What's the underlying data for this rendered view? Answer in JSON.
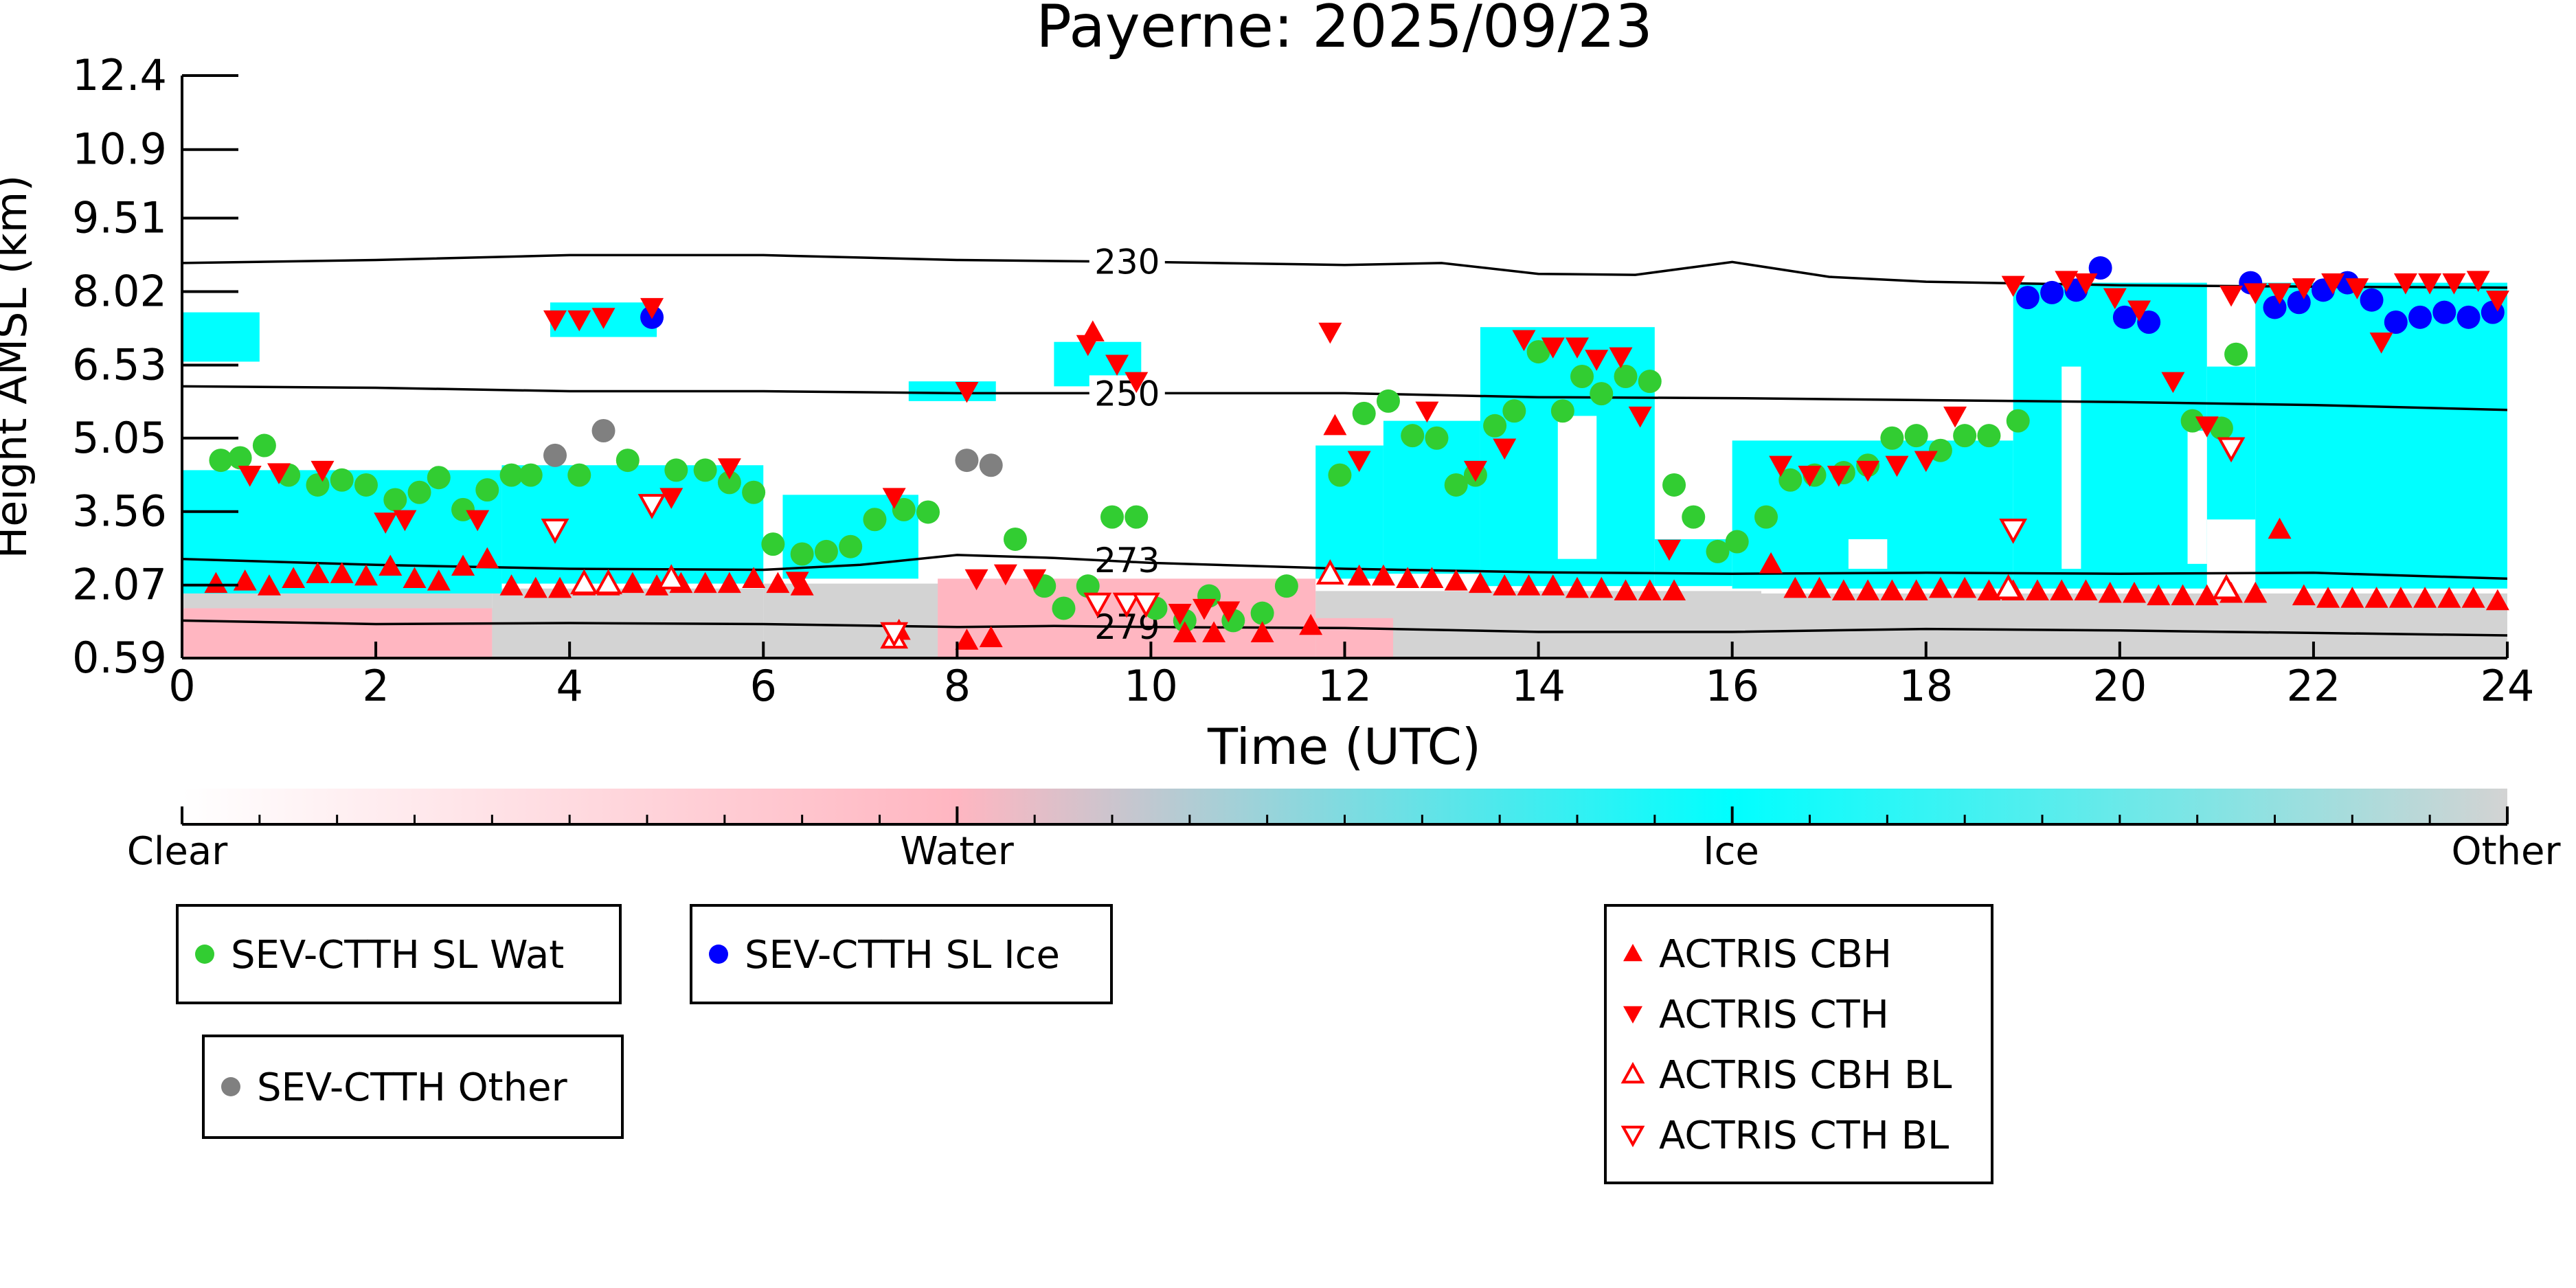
{
  "chart_data": {
    "type": "scatter",
    "title": "Payerne: 2025/09/23",
    "xlabel": "Time (UTC)",
    "ylabel": "Height AMSL (km)",
    "xlim": [
      0,
      24
    ],
    "ylim": [
      0.59,
      12.4
    ],
    "x_ticks": [
      0,
      2,
      4,
      6,
      8,
      10,
      12,
      14,
      16,
      18,
      20,
      22,
      24
    ],
    "y_ticks": [
      "0.59",
      "2.07",
      "3.56",
      "5.05",
      "6.53",
      "8.02",
      "9.51",
      "10.9",
      "12.4"
    ],
    "y_tick_values": [
      0.59,
      2.07,
      3.56,
      5.05,
      6.53,
      8.02,
      9.51,
      10.9,
      12.4
    ],
    "colors": {
      "clear": "#ffffff",
      "water": "#ffb6c1",
      "ice": "#00ffff",
      "other": "#d3d3d3",
      "wat": "#32cd32",
      "ice_marker": "#0000ff",
      "other_marker": "#808080",
      "actris": "#ff0000"
    },
    "colorbar": {
      "labels": [
        "Clear",
        "Water",
        "Ice",
        "Other"
      ]
    },
    "isotherms": [
      {
        "label": "230",
        "label_x": 9.4,
        "points": [
          [
            0,
            8.6
          ],
          [
            2,
            8.66
          ],
          [
            4,
            8.76
          ],
          [
            6,
            8.76
          ],
          [
            8,
            8.66
          ],
          [
            10,
            8.62
          ],
          [
            12,
            8.56
          ],
          [
            13,
            8.6
          ],
          [
            14,
            8.38
          ],
          [
            15,
            8.36
          ],
          [
            16,
            8.62
          ],
          [
            17,
            8.32
          ],
          [
            18,
            8.22
          ],
          [
            20,
            8.15
          ],
          [
            22,
            8.12
          ],
          [
            24,
            8.1
          ]
        ]
      },
      {
        "label": "250",
        "label_x": 9.4,
        "points": [
          [
            0,
            6.1
          ],
          [
            2,
            6.07
          ],
          [
            4,
            6.0
          ],
          [
            6,
            6.0
          ],
          [
            8,
            5.96
          ],
          [
            10,
            5.96
          ],
          [
            12,
            5.96
          ],
          [
            14,
            5.88
          ],
          [
            16,
            5.86
          ],
          [
            18,
            5.82
          ],
          [
            20,
            5.78
          ],
          [
            22,
            5.72
          ],
          [
            24,
            5.62
          ]
        ]
      },
      {
        "label": "273",
        "label_x": 9.4,
        "points": [
          [
            0,
            2.6
          ],
          [
            2,
            2.48
          ],
          [
            4,
            2.4
          ],
          [
            6,
            2.38
          ],
          [
            7,
            2.48
          ],
          [
            8,
            2.68
          ],
          [
            9,
            2.62
          ],
          [
            10,
            2.52
          ],
          [
            12,
            2.4
          ],
          [
            14,
            2.33
          ],
          [
            16,
            2.3
          ],
          [
            18,
            2.32
          ],
          [
            20,
            2.3
          ],
          [
            22,
            2.32
          ],
          [
            24,
            2.2
          ]
        ]
      },
      {
        "label": "279",
        "label_x": 9.4,
        "points": [
          [
            0,
            1.35
          ],
          [
            2,
            1.28
          ],
          [
            4,
            1.3
          ],
          [
            6,
            1.28
          ],
          [
            8,
            1.22
          ],
          [
            9,
            1.24
          ],
          [
            10,
            1.22
          ],
          [
            12,
            1.2
          ],
          [
            14,
            1.12
          ],
          [
            16,
            1.12
          ],
          [
            18,
            1.18
          ],
          [
            20,
            1.15
          ],
          [
            22,
            1.1
          ],
          [
            24,
            1.05
          ]
        ]
      }
    ],
    "series": [
      {
        "name": "SEV-CTTH SL Wat",
        "marker": "circle",
        "color": "#32cd32",
        "x": [
          0.4,
          0.6,
          0.85,
          1.1,
          1.4,
          1.65,
          1.9,
          2.2,
          2.45,
          2.65,
          2.9,
          3.15,
          3.4,
          3.6,
          4.1,
          4.6,
          5.1,
          5.4,
          5.65,
          5.9,
          6.1,
          6.4,
          6.65,
          6.9,
          7.15,
          7.45,
          7.7,
          8.6,
          8.9,
          9.1,
          9.35,
          9.6,
          9.85,
          10.05,
          10.35,
          10.6,
          10.85,
          11.15,
          11.4,
          11.95,
          12.2,
          12.45,
          12.7,
          12.95,
          13.15,
          13.35,
          13.55,
          13.75,
          14.0,
          14.25,
          14.45,
          14.65,
          14.9,
          15.15,
          15.4,
          15.6,
          15.85,
          16.05,
          16.35,
          16.6,
          16.85,
          17.15,
          17.4,
          17.65,
          17.9,
          18.15,
          18.4,
          18.65,
          18.95,
          20.75,
          21.05,
          21.2
        ],
        "y": [
          4.6,
          4.65,
          4.9,
          4.3,
          4.1,
          4.2,
          4.1,
          3.8,
          3.95,
          4.25,
          3.6,
          4.0,
          4.3,
          4.3,
          4.3,
          4.6,
          4.4,
          4.4,
          4.15,
          3.95,
          2.9,
          2.7,
          2.75,
          2.85,
          3.4,
          3.6,
          3.55,
          3.0,
          2.05,
          1.6,
          2.05,
          3.45,
          3.45,
          1.6,
          1.35,
          1.85,
          1.35,
          1.5,
          2.05,
          4.3,
          5.55,
          5.8,
          5.1,
          5.05,
          4.1,
          4.3,
          5.3,
          5.6,
          6.8,
          5.6,
          6.3,
          5.95,
          6.3,
          6.2,
          4.1,
          3.45,
          2.75,
          2.95,
          3.45,
          4.2,
          4.3,
          4.35,
          4.5,
          5.05,
          5.1,
          4.8,
          5.1,
          5.1,
          5.4,
          5.4,
          5.25,
          6.75
        ]
      },
      {
        "name": "SEV-CTTH SL Ice",
        "marker": "circle",
        "color": "#0000ff",
        "x": [
          4.85,
          19.05,
          19.3,
          19.55,
          19.8,
          20.05,
          20.3,
          21.35,
          21.6,
          21.85,
          22.1,
          22.35,
          22.6,
          22.85,
          23.1,
          23.35,
          23.6,
          23.85
        ],
        "y": [
          7.5,
          7.9,
          8.0,
          8.05,
          8.5,
          7.5,
          7.4,
          8.2,
          7.7,
          7.8,
          8.05,
          8.2,
          7.85,
          7.4,
          7.5,
          7.6,
          7.5,
          7.6
        ]
      },
      {
        "name": "SEV-CTTH Other",
        "marker": "circle",
        "color": "#808080",
        "x": [
          3.85,
          4.35,
          8.1,
          8.35
        ],
        "y": [
          4.7,
          5.2,
          4.6,
          4.5
        ]
      },
      {
        "name": "ACTRIS CBH",
        "marker": "triangle-up",
        "color": "#ff0000",
        "x": [
          0.35,
          0.65,
          0.9,
          1.15,
          1.4,
          1.65,
          1.9,
          2.15,
          2.4,
          2.65,
          2.9,
          3.15,
          3.4,
          3.65,
          3.9,
          4.15,
          4.4,
          4.65,
          4.9,
          5.15,
          5.4,
          5.65,
          5.9,
          6.15,
          6.4,
          7.4,
          8.1,
          8.35,
          9.4,
          10.35,
          10.65,
          11.15,
          11.65,
          11.9,
          12.15,
          12.4,
          12.65,
          12.9,
          13.15,
          13.4,
          13.65,
          13.9,
          14.15,
          14.4,
          14.65,
          14.9,
          15.15,
          15.4,
          16.4,
          16.65,
          16.9,
          17.15,
          17.4,
          17.65,
          17.9,
          18.15,
          18.4,
          18.65,
          18.9,
          19.15,
          19.4,
          19.65,
          19.9,
          20.15,
          20.4,
          20.65,
          20.9,
          21.15,
          21.4,
          21.65,
          21.9,
          22.15,
          22.4,
          22.65,
          22.9,
          23.15,
          23.4,
          23.65,
          23.9
        ],
        "y": [
          2.1,
          2.15,
          2.05,
          2.2,
          2.3,
          2.3,
          2.25,
          2.45,
          2.2,
          2.15,
          2.45,
          2.6,
          2.05,
          2.0,
          2.0,
          2.05,
          2.05,
          2.1,
          2.05,
          2.1,
          2.1,
          2.1,
          2.2,
          2.1,
          2.05,
          1.15,
          0.95,
          1.0,
          7.2,
          1.1,
          1.1,
          1.1,
          1.25,
          5.3,
          2.25,
          2.25,
          2.2,
          2.2,
          2.15,
          2.1,
          2.05,
          2.05,
          2.05,
          2.0,
          2.0,
          1.95,
          1.95,
          1.95,
          2.5,
          2.0,
          2.0,
          1.95,
          1.95,
          1.95,
          1.95,
          2.0,
          2.0,
          1.95,
          1.95,
          1.95,
          1.95,
          1.95,
          1.9,
          1.9,
          1.85,
          1.85,
          1.85,
          1.9,
          1.9,
          3.2,
          1.85,
          1.8,
          1.8,
          1.8,
          1.8,
          1.8,
          1.8,
          1.8,
          1.75
        ]
      },
      {
        "name": "ACTRIS CTH",
        "marker": "triangle-down",
        "color": "#ff0000",
        "x": [
          0.7,
          1.0,
          1.45,
          2.1,
          2.3,
          3.05,
          3.85,
          4.1,
          4.35,
          4.85,
          5.05,
          5.65,
          6.35,
          7.35,
          8.1,
          8.2,
          8.5,
          8.8,
          9.35,
          9.65,
          9.85,
          10.3,
          10.55,
          10.8,
          11.85,
          12.15,
          12.85,
          13.35,
          13.65,
          13.85,
          14.15,
          14.4,
          14.6,
          14.85,
          15.05,
          15.35,
          16.5,
          16.8,
          17.1,
          17.4,
          17.7,
          18.0,
          18.3,
          18.9,
          19.45,
          19.65,
          19.95,
          20.2,
          20.55,
          20.9,
          21.15,
          21.4,
          21.65,
          21.9,
          22.2,
          22.45,
          22.7,
          22.95,
          23.2,
          23.45,
          23.7,
          23.9
        ],
        "y": [
          4.3,
          4.35,
          4.4,
          3.35,
          3.4,
          3.4,
          7.45,
          7.45,
          7.5,
          7.7,
          3.85,
          4.45,
          2.15,
          3.85,
          6.0,
          2.2,
          2.3,
          2.2,
          6.95,
          6.55,
          6.2,
          1.5,
          1.6,
          1.55,
          7.2,
          4.6,
          5.6,
          4.4,
          4.85,
          7.05,
          6.9,
          6.9,
          6.65,
          6.7,
          5.5,
          2.8,
          4.5,
          4.3,
          4.3,
          4.4,
          4.5,
          4.6,
          5.5,
          8.15,
          8.25,
          8.2,
          7.9,
          7.65,
          6.2,
          5.3,
          7.95,
          8.0,
          8.0,
          8.1,
          8.2,
          8.1,
          7.0,
          8.2,
          8.2,
          8.2,
          8.25,
          7.85
        ]
      },
      {
        "name": "ACTRIS CBH BL",
        "marker": "triangle-up-open",
        "color": "#ff0000",
        "x": [
          4.15,
          4.4,
          5.05,
          7.35,
          11.85,
          18.85,
          21.1
        ],
        "y": [
          2.1,
          2.1,
          2.2,
          1.0,
          2.3,
          2.0,
          2.0
        ]
      },
      {
        "name": "ACTRIS CTH BL",
        "marker": "triangle-down-open",
        "color": "#ff0000",
        "x": [
          3.85,
          4.85,
          7.35,
          9.45,
          9.75,
          9.95,
          18.9,
          21.15
        ],
        "y": [
          3.2,
          3.7,
          1.1,
          1.7,
          1.7,
          1.7,
          3.2,
          4.85
        ]
      }
    ],
    "legend_groups": [
      {
        "entries": [
          0
        ]
      },
      {
        "entries": [
          1
        ]
      },
      {
        "entries": [
          2
        ]
      },
      {
        "entries": [
          3,
          4,
          5,
          6
        ]
      }
    ]
  }
}
